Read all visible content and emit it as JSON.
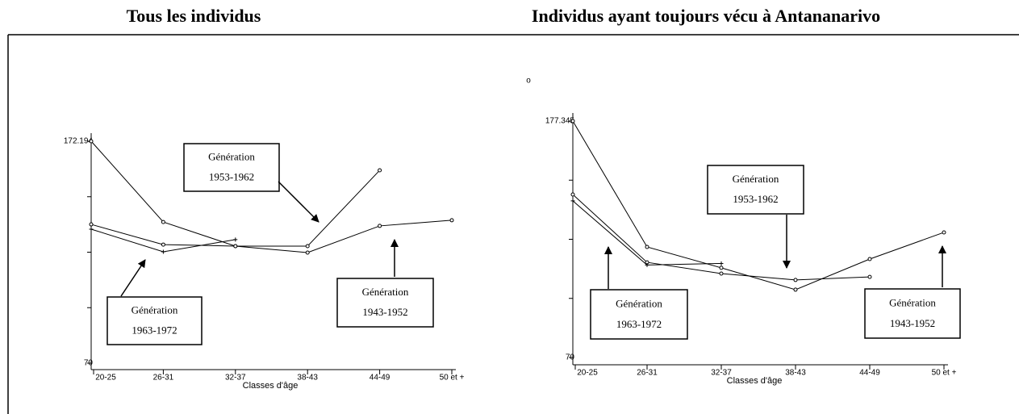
{
  "chart_data": [
    {
      "type": "line",
      "title": "Tous les individus",
      "x_label": "Classes d'âge",
      "categories": [
        "20-25",
        "26-31",
        "32-37",
        "38-43",
        "44-49",
        "50 et +"
      ],
      "ylim": [
        70,
        172.194
      ],
      "yticks": [
        70,
        172.194
      ],
      "minor_yticks": [
        95.55,
        121.1,
        146.64
      ],
      "series": [
        {
          "color": "#000000",
          "marker": "circle",
          "values": [
            172.19,
            135.0,
            123.9,
            123.9,
            158.8,
            null
          ]
        },
        {
          "color": "#000000",
          "marker": "circle",
          "values": [
            133.9,
            124.6,
            123.9,
            120.9,
            133.2,
            135.8
          ]
        },
        {
          "color": "#000000",
          "marker": "plus",
          "values": [
            131.7,
            121.3,
            126.9,
            null,
            null,
            null
          ]
        }
      ],
      "annotations": [
        {
          "text": "Génération",
          "period": "1953-1962"
        },
        {
          "text": "Génération",
          "period": "1963-1972"
        },
        {
          "text": "Génération",
          "period": "1943-1952"
        }
      ]
    },
    {
      "type": "line",
      "title": "Individus ayant toujours vécu à Antananarivo",
      "x_label": "Classes d'âge",
      "categories": [
        "20-25",
        "26-31",
        "32-37",
        "38-43",
        "44-49",
        "50 et +"
      ],
      "ylim": [
        70,
        177.345
      ],
      "yticks": [
        70,
        177.345
      ],
      "minor_yticks": [
        96.84,
        123.67,
        150.51
      ],
      "stray_text": "o",
      "series": [
        {
          "color": "#000000",
          "marker": "circle",
          "values": [
            177.345,
            120.2,
            110.7,
            100.8,
            114.7,
            126.8
          ]
        },
        {
          "color": "#000000",
          "marker": "circle",
          "values": [
            144.0,
            113.2,
            108.1,
            105.2,
            106.6,
            null
          ]
        },
        {
          "color": "#000000",
          "marker": "plus",
          "values": [
            141.1,
            112.0,
            112.7,
            null,
            null,
            null
          ]
        }
      ],
      "annotations": [
        {
          "text": "Génération",
          "period": "1953-1962"
        },
        {
          "text": "Génération",
          "period": "1963-1972"
        },
        {
          "text": "Génération",
          "period": "1943-1952"
        }
      ]
    }
  ]
}
